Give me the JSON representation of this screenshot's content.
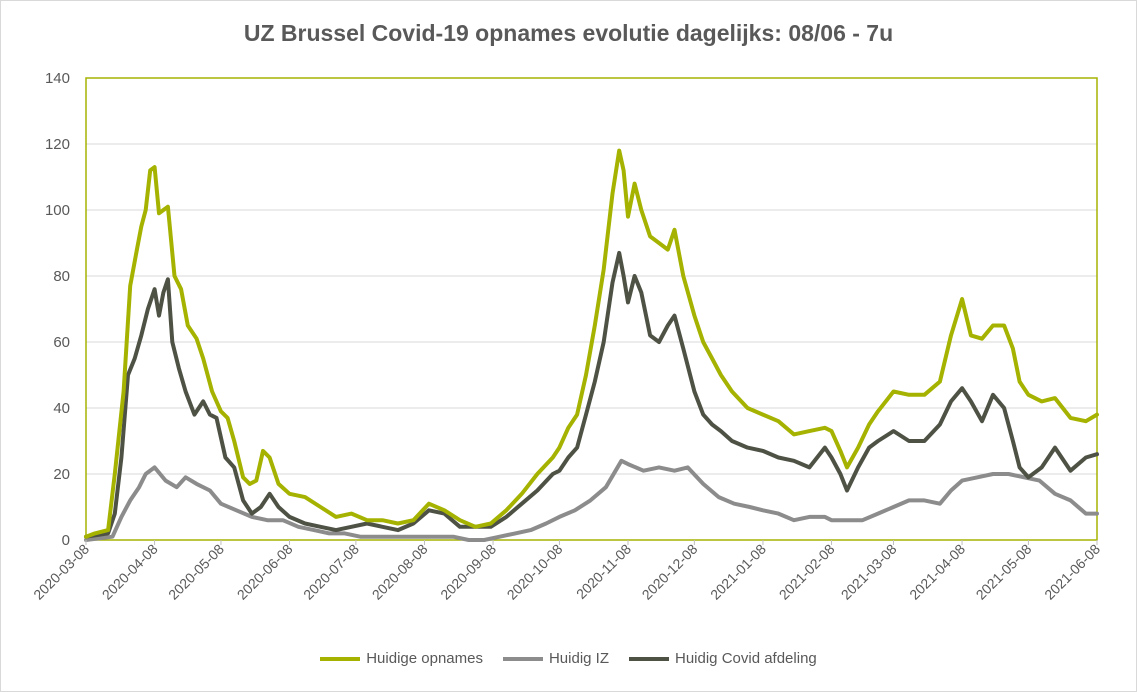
{
  "chart_data": {
    "type": "line",
    "title": "UZ Brussel Covid-19 opnames evolutie dagelijks: 08/06 - 7u",
    "xlabel": "",
    "ylabel": "",
    "ylim": [
      0,
      140
    ],
    "y_ticks": [
      0,
      20,
      40,
      60,
      80,
      100,
      120,
      140
    ],
    "x_start": "2020-03-08",
    "x_end": "2021-06-08",
    "x_ticks": [
      "2020-03-08",
      "2020-04-08",
      "2020-05-08",
      "2020-06-08",
      "2020-07-08",
      "2020-08-08",
      "2020-09-08",
      "2020-10-08",
      "2020-11-08",
      "2020-12-08",
      "2021-01-08",
      "2021-02-08",
      "2021-03-08",
      "2021-04-08",
      "2021-05-08",
      "2021-06-08"
    ],
    "grid": true,
    "legend_position": "bottom",
    "series": [
      {
        "name": "Huidige opnames",
        "color": "#a5b300",
        "points": [
          [
            "2020-03-08",
            1
          ],
          [
            "2020-03-12",
            2
          ],
          [
            "2020-03-18",
            3
          ],
          [
            "2020-03-21",
            20
          ],
          [
            "2020-03-25",
            45
          ],
          [
            "2020-03-28",
            77
          ],
          [
            "2020-03-31",
            88
          ],
          [
            "2020-04-02",
            95
          ],
          [
            "2020-04-04",
            100
          ],
          [
            "2020-04-06",
            112
          ],
          [
            "2020-04-08",
            113
          ],
          [
            "2020-04-10",
            99
          ],
          [
            "2020-04-12",
            100
          ],
          [
            "2020-04-14",
            101
          ],
          [
            "2020-04-17",
            80
          ],
          [
            "2020-04-20",
            76
          ],
          [
            "2020-04-23",
            65
          ],
          [
            "2020-04-27",
            61
          ],
          [
            "2020-04-30",
            55
          ],
          [
            "2020-05-04",
            45
          ],
          [
            "2020-05-08",
            39
          ],
          [
            "2020-05-11",
            37
          ],
          [
            "2020-05-14",
            30
          ],
          [
            "2020-05-18",
            19
          ],
          [
            "2020-05-21",
            17
          ],
          [
            "2020-05-24",
            18
          ],
          [
            "2020-05-27",
            27
          ],
          [
            "2020-05-30",
            25
          ],
          [
            "2020-06-03",
            17
          ],
          [
            "2020-06-08",
            14
          ],
          [
            "2020-06-15",
            13
          ],
          [
            "2020-06-22",
            10
          ],
          [
            "2020-06-29",
            7
          ],
          [
            "2020-07-06",
            8
          ],
          [
            "2020-07-13",
            6
          ],
          [
            "2020-07-20",
            6
          ],
          [
            "2020-07-27",
            5
          ],
          [
            "2020-08-03",
            6
          ],
          [
            "2020-08-10",
            11
          ],
          [
            "2020-08-17",
            9
          ],
          [
            "2020-08-24",
            6
          ],
          [
            "2020-08-31",
            4
          ],
          [
            "2020-09-07",
            5
          ],
          [
            "2020-09-14",
            9
          ],
          [
            "2020-09-21",
            14
          ],
          [
            "2020-09-28",
            20
          ],
          [
            "2020-10-05",
            25
          ],
          [
            "2020-10-08",
            28
          ],
          [
            "2020-10-12",
            34
          ],
          [
            "2020-10-16",
            38
          ],
          [
            "2020-10-20",
            50
          ],
          [
            "2020-10-24",
            65
          ],
          [
            "2020-10-28",
            82
          ],
          [
            "2020-11-01",
            105
          ],
          [
            "2020-11-04",
            118
          ],
          [
            "2020-11-06",
            112
          ],
          [
            "2020-11-08",
            98
          ],
          [
            "2020-11-11",
            108
          ],
          [
            "2020-11-14",
            100
          ],
          [
            "2020-11-18",
            92
          ],
          [
            "2020-11-22",
            90
          ],
          [
            "2020-11-26",
            88
          ],
          [
            "2020-11-29",
            94
          ],
          [
            "2020-12-03",
            80
          ],
          [
            "2020-12-08",
            68
          ],
          [
            "2020-12-12",
            60
          ],
          [
            "2020-12-16",
            55
          ],
          [
            "2020-12-20",
            50
          ],
          [
            "2020-12-25",
            45
          ],
          [
            "2021-01-01",
            40
          ],
          [
            "2021-01-08",
            38
          ],
          [
            "2021-01-15",
            36
          ],
          [
            "2021-01-22",
            32
          ],
          [
            "2021-01-29",
            33
          ],
          [
            "2021-02-05",
            34
          ],
          [
            "2021-02-08",
            33
          ],
          [
            "2021-02-12",
            27
          ],
          [
            "2021-02-15",
            22
          ],
          [
            "2021-02-20",
            28
          ],
          [
            "2021-02-25",
            35
          ],
          [
            "2021-03-01",
            39
          ],
          [
            "2021-03-08",
            45
          ],
          [
            "2021-03-15",
            44
          ],
          [
            "2021-03-22",
            44
          ],
          [
            "2021-03-29",
            48
          ],
          [
            "2021-04-03",
            62
          ],
          [
            "2021-04-08",
            73
          ],
          [
            "2021-04-12",
            62
          ],
          [
            "2021-04-17",
            61
          ],
          [
            "2021-04-22",
            65
          ],
          [
            "2021-04-27",
            65
          ],
          [
            "2021-05-01",
            58
          ],
          [
            "2021-05-04",
            48
          ],
          [
            "2021-05-08",
            44
          ],
          [
            "2021-05-14",
            42
          ],
          [
            "2021-05-20",
            43
          ],
          [
            "2021-05-27",
            37
          ],
          [
            "2021-06-03",
            36
          ],
          [
            "2021-06-08",
            38
          ]
        ]
      },
      {
        "name": "Huidig IZ",
        "color": "#8c8c8c",
        "points": [
          [
            "2020-03-08",
            0
          ],
          [
            "2020-03-20",
            1
          ],
          [
            "2020-03-24",
            7
          ],
          [
            "2020-03-28",
            12
          ],
          [
            "2020-04-01",
            16
          ],
          [
            "2020-04-04",
            20
          ],
          [
            "2020-04-08",
            22
          ],
          [
            "2020-04-13",
            18
          ],
          [
            "2020-04-18",
            16
          ],
          [
            "2020-04-22",
            19
          ],
          [
            "2020-04-27",
            17
          ],
          [
            "2020-05-03",
            15
          ],
          [
            "2020-05-08",
            11
          ],
          [
            "2020-05-15",
            9
          ],
          [
            "2020-05-22",
            7
          ],
          [
            "2020-05-29",
            6
          ],
          [
            "2020-06-05",
            6
          ],
          [
            "2020-06-12",
            4
          ],
          [
            "2020-06-19",
            3
          ],
          [
            "2020-06-26",
            2
          ],
          [
            "2020-07-03",
            2
          ],
          [
            "2020-07-10",
            1
          ],
          [
            "2020-07-17",
            1
          ],
          [
            "2020-07-24",
            1
          ],
          [
            "2020-07-31",
            1
          ],
          [
            "2020-08-07",
            1
          ],
          [
            "2020-08-14",
            1
          ],
          [
            "2020-08-21",
            1
          ],
          [
            "2020-08-28",
            0
          ],
          [
            "2020-09-04",
            0
          ],
          [
            "2020-09-11",
            1
          ],
          [
            "2020-09-18",
            2
          ],
          [
            "2020-09-25",
            3
          ],
          [
            "2020-10-02",
            5
          ],
          [
            "2020-10-08",
            7
          ],
          [
            "2020-10-15",
            9
          ],
          [
            "2020-10-22",
            12
          ],
          [
            "2020-10-29",
            16
          ],
          [
            "2020-11-05",
            24
          ],
          [
            "2020-11-08",
            23
          ],
          [
            "2020-11-15",
            21
          ],
          [
            "2020-11-22",
            22
          ],
          [
            "2020-11-29",
            21
          ],
          [
            "2020-12-05",
            22
          ],
          [
            "2020-12-12",
            17
          ],
          [
            "2020-12-19",
            13
          ],
          [
            "2020-12-26",
            11
          ],
          [
            "2021-01-02",
            10
          ],
          [
            "2021-01-08",
            9
          ],
          [
            "2021-01-15",
            8
          ],
          [
            "2021-01-22",
            6
          ],
          [
            "2021-01-29",
            7
          ],
          [
            "2021-02-05",
            7
          ],
          [
            "2021-02-08",
            6
          ],
          [
            "2021-02-15",
            6
          ],
          [
            "2021-02-22",
            6
          ],
          [
            "2021-03-01",
            8
          ],
          [
            "2021-03-08",
            10
          ],
          [
            "2021-03-15",
            12
          ],
          [
            "2021-03-22",
            12
          ],
          [
            "2021-03-29",
            11
          ],
          [
            "2021-04-03",
            15
          ],
          [
            "2021-04-08",
            18
          ],
          [
            "2021-04-15",
            19
          ],
          [
            "2021-04-22",
            20
          ],
          [
            "2021-04-29",
            20
          ],
          [
            "2021-05-06",
            19
          ],
          [
            "2021-05-13",
            18
          ],
          [
            "2021-05-20",
            14
          ],
          [
            "2021-05-27",
            12
          ],
          [
            "2021-06-03",
            8
          ],
          [
            "2021-06-08",
            8
          ]
        ]
      },
      {
        "name": "Huidig Covid afdeling",
        "color": "#4d5245",
        "points": [
          [
            "2020-03-08",
            1
          ],
          [
            "2020-03-18",
            2
          ],
          [
            "2020-03-21",
            8
          ],
          [
            "2020-03-24",
            25
          ],
          [
            "2020-03-27",
            50
          ],
          [
            "2020-03-30",
            55
          ],
          [
            "2020-04-02",
            62
          ],
          [
            "2020-04-05",
            70
          ],
          [
            "2020-04-08",
            76
          ],
          [
            "2020-04-10",
            68
          ],
          [
            "2020-04-12",
            75
          ],
          [
            "2020-04-14",
            79
          ],
          [
            "2020-04-16",
            60
          ],
          [
            "2020-04-19",
            52
          ],
          [
            "2020-04-22",
            45
          ],
          [
            "2020-04-26",
            38
          ],
          [
            "2020-04-30",
            42
          ],
          [
            "2020-05-03",
            38
          ],
          [
            "2020-05-06",
            37
          ],
          [
            "2020-05-10",
            25
          ],
          [
            "2020-05-14",
            22
          ],
          [
            "2020-05-18",
            12
          ],
          [
            "2020-05-22",
            8
          ],
          [
            "2020-05-26",
            10
          ],
          [
            "2020-05-30",
            14
          ],
          [
            "2020-06-03",
            10
          ],
          [
            "2020-06-08",
            7
          ],
          [
            "2020-06-15",
            5
          ],
          [
            "2020-06-22",
            4
          ],
          [
            "2020-06-29",
            3
          ],
          [
            "2020-07-06",
            4
          ],
          [
            "2020-07-13",
            5
          ],
          [
            "2020-07-20",
            4
          ],
          [
            "2020-07-27",
            3
          ],
          [
            "2020-08-03",
            5
          ],
          [
            "2020-08-10",
            9
          ],
          [
            "2020-08-17",
            8
          ],
          [
            "2020-08-24",
            4
          ],
          [
            "2020-08-31",
            4
          ],
          [
            "2020-09-07",
            4
          ],
          [
            "2020-09-14",
            7
          ],
          [
            "2020-09-21",
            11
          ],
          [
            "2020-09-28",
            15
          ],
          [
            "2020-10-05",
            20
          ],
          [
            "2020-10-08",
            21
          ],
          [
            "2020-10-12",
            25
          ],
          [
            "2020-10-16",
            28
          ],
          [
            "2020-10-20",
            38
          ],
          [
            "2020-10-24",
            48
          ],
          [
            "2020-10-28",
            60
          ],
          [
            "2020-11-01",
            78
          ],
          [
            "2020-11-04",
            87
          ],
          [
            "2020-11-06",
            80
          ],
          [
            "2020-11-08",
            72
          ],
          [
            "2020-11-11",
            80
          ],
          [
            "2020-11-14",
            75
          ],
          [
            "2020-11-18",
            62
          ],
          [
            "2020-11-22",
            60
          ],
          [
            "2020-11-26",
            65
          ],
          [
            "2020-11-29",
            68
          ],
          [
            "2020-12-03",
            58
          ],
          [
            "2020-12-08",
            45
          ],
          [
            "2020-12-12",
            38
          ],
          [
            "2020-12-16",
            35
          ],
          [
            "2020-12-20",
            33
          ],
          [
            "2020-12-25",
            30
          ],
          [
            "2021-01-01",
            28
          ],
          [
            "2021-01-08",
            27
          ],
          [
            "2021-01-15",
            25
          ],
          [
            "2021-01-22",
            24
          ],
          [
            "2021-01-29",
            22
          ],
          [
            "2021-02-05",
            28
          ],
          [
            "2021-02-08",
            25
          ],
          [
            "2021-02-12",
            20
          ],
          [
            "2021-02-15",
            15
          ],
          [
            "2021-02-20",
            22
          ],
          [
            "2021-02-25",
            28
          ],
          [
            "2021-03-01",
            30
          ],
          [
            "2021-03-08",
            33
          ],
          [
            "2021-03-15",
            30
          ],
          [
            "2021-03-22",
            30
          ],
          [
            "2021-03-29",
            35
          ],
          [
            "2021-04-03",
            42
          ],
          [
            "2021-04-08",
            46
          ],
          [
            "2021-04-12",
            42
          ],
          [
            "2021-04-17",
            36
          ],
          [
            "2021-04-22",
            44
          ],
          [
            "2021-04-27",
            40
          ],
          [
            "2021-05-01",
            30
          ],
          [
            "2021-05-04",
            22
          ],
          [
            "2021-05-08",
            19
          ],
          [
            "2021-05-14",
            22
          ],
          [
            "2021-05-20",
            28
          ],
          [
            "2021-05-27",
            21
          ],
          [
            "2021-06-03",
            25
          ],
          [
            "2021-06-08",
            26
          ]
        ]
      }
    ]
  }
}
